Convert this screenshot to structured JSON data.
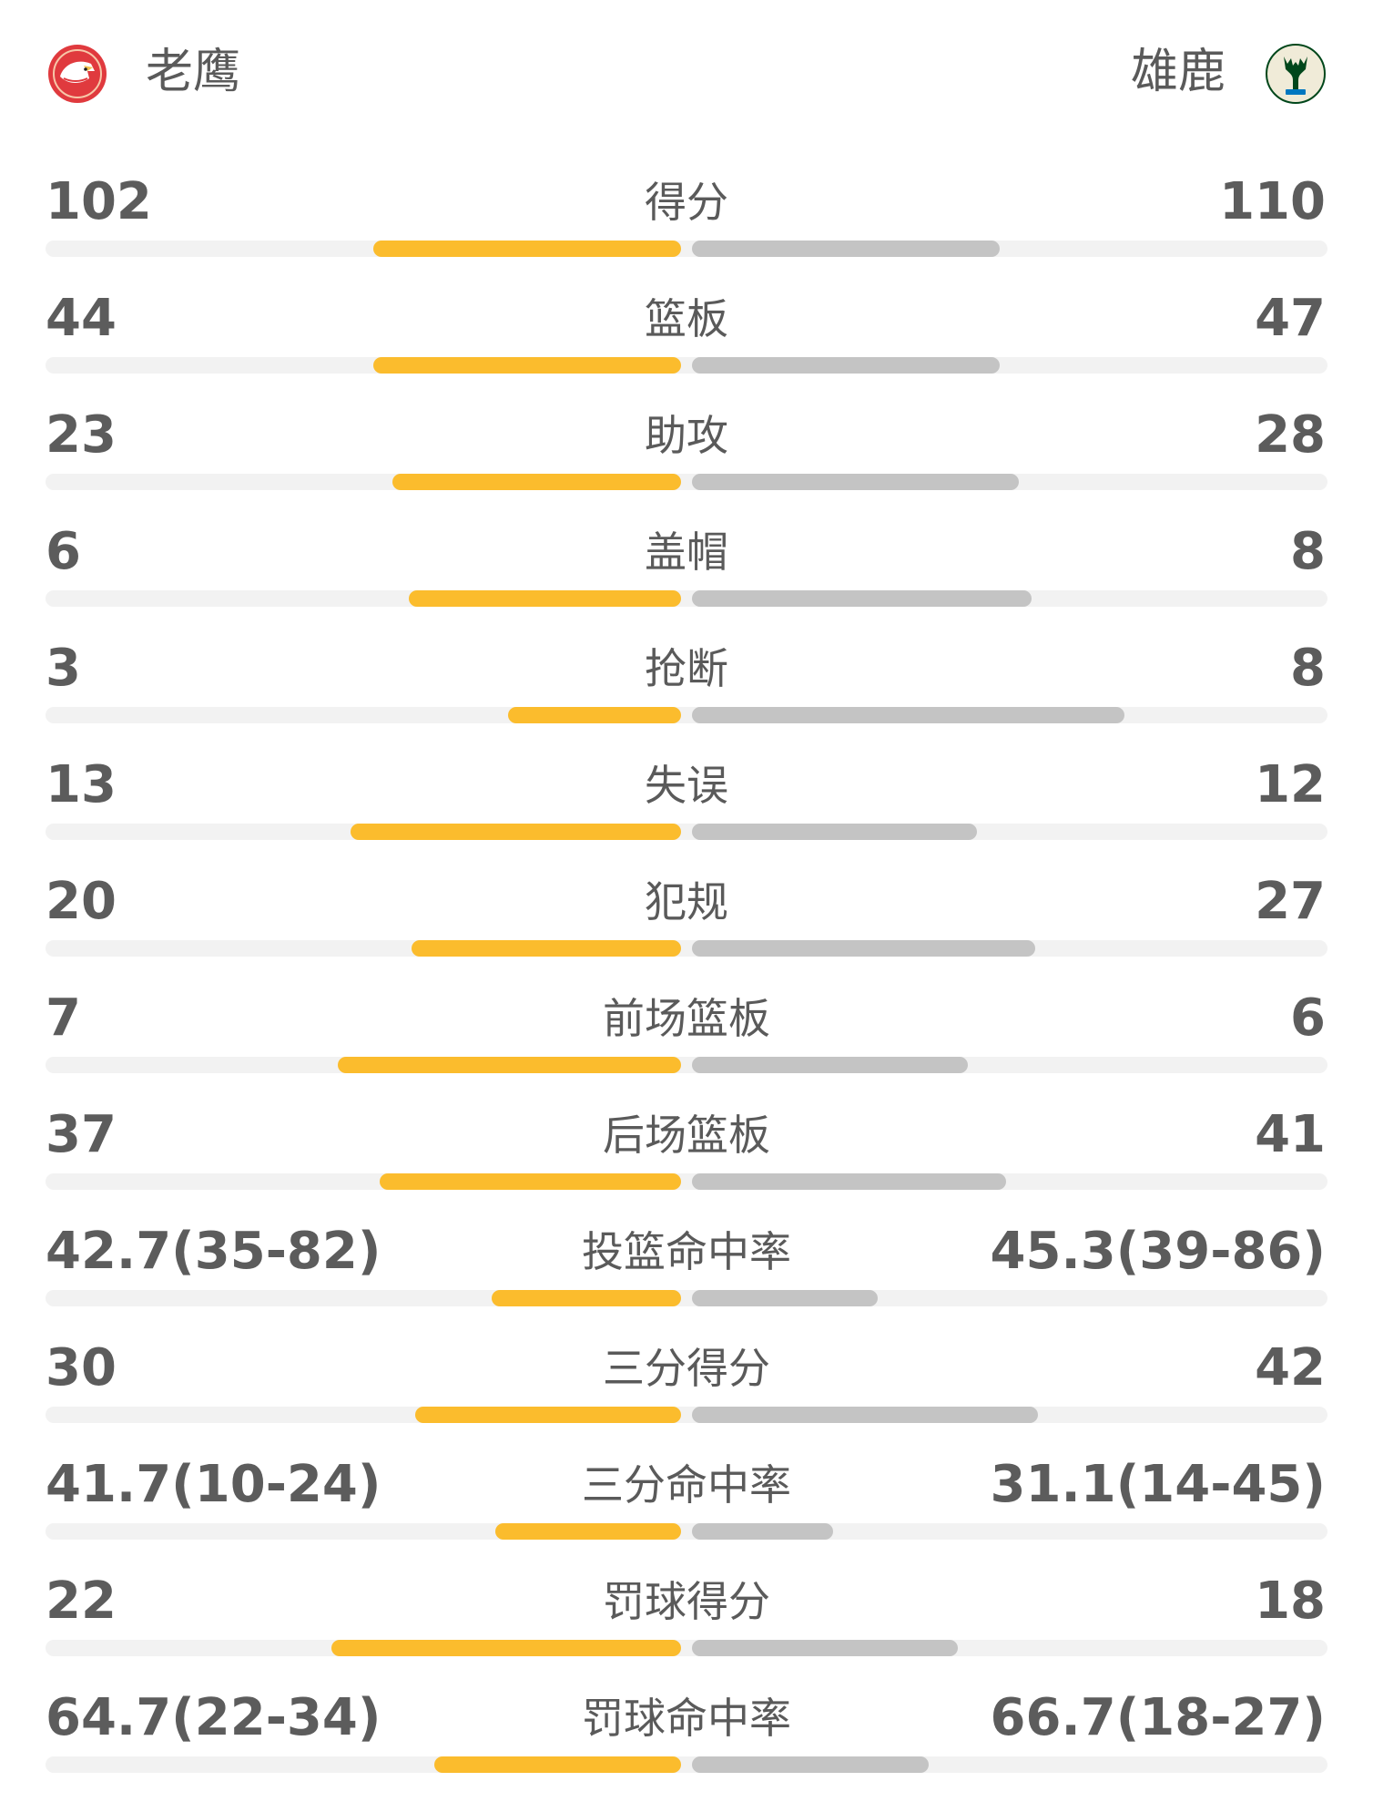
{
  "teams": {
    "home": {
      "name": "老鹰",
      "logo_icon": "atlanta-hawks-logo",
      "color": "#e03a3e"
    },
    "away": {
      "name": "雄鹿",
      "logo_icon": "milwaukee-bucks-logo",
      "color": "#00471b"
    }
  },
  "colors": {
    "home_bar": "#fbbc2d",
    "away_bar": "#c4c4c4",
    "track": "#f2f2f2"
  },
  "stats": [
    {
      "label": "得分",
      "left": "102",
      "right": "110",
      "left_share": 0.48,
      "right_share": 0.48
    },
    {
      "label": "篮板",
      "left": "44",
      "right": "47",
      "left_share": 0.48,
      "right_share": 0.48
    },
    {
      "label": "助攻",
      "left": "23",
      "right": "28",
      "left_share": 0.45,
      "right_share": 0.51
    },
    {
      "label": "盖帽",
      "left": "6",
      "right": "8",
      "left_share": 0.425,
      "right_share": 0.53
    },
    {
      "label": "抢断",
      "left": "3",
      "right": "8",
      "left_share": 0.27,
      "right_share": 0.675
    },
    {
      "label": "失误",
      "left": "13",
      "right": "12",
      "left_share": 0.515,
      "right_share": 0.445
    },
    {
      "label": "犯规",
      "left": "20",
      "right": "27",
      "left_share": 0.42,
      "right_share": 0.535
    },
    {
      "label": "前场篮板",
      "left": "7",
      "right": "6",
      "left_share": 0.535,
      "right_share": 0.43
    },
    {
      "label": "后场篮板",
      "left": "37",
      "right": "41",
      "left_share": 0.47,
      "right_share": 0.49
    },
    {
      "label": "投篮命中率",
      "left": "42.7(35-82)",
      "right": "45.3(39-86)",
      "left_share": 0.295,
      "right_share": 0.29
    },
    {
      "label": "三分得分",
      "left": "30",
      "right": "42",
      "left_share": 0.415,
      "right_share": 0.54
    },
    {
      "label": "三分命中率",
      "left": "41.7(10-24)",
      "right": "31.1(14-45)",
      "left_share": 0.29,
      "right_share": 0.22
    },
    {
      "label": "罚球得分",
      "left": "22",
      "right": "18",
      "left_share": 0.545,
      "right_share": 0.415
    },
    {
      "label": "罚球命中率",
      "left": "64.7(22-34)",
      "right": "66.7(18-27)",
      "left_share": 0.385,
      "right_share": 0.37
    }
  ]
}
